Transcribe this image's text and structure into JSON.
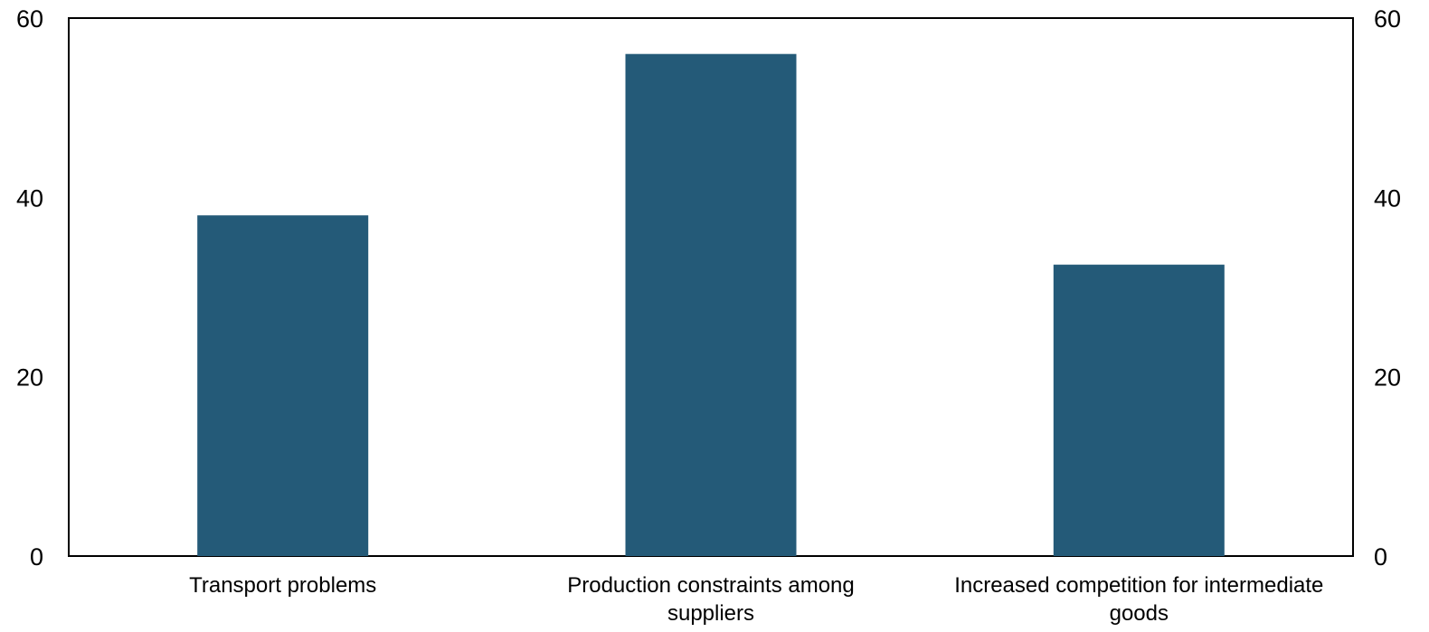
{
  "chart_data": {
    "type": "bar",
    "title": "",
    "xlabel": "",
    "ylabel": "",
    "categories": [
      [
        "Transport problems"
      ],
      [
        "Production constraints among",
        "suppliers"
      ],
      [
        "Increased competition for intermediate",
        "goods"
      ]
    ],
    "values": [
      38,
      56,
      32.5
    ],
    "ylim": [
      0,
      60
    ],
    "yticks": [
      0,
      20,
      40,
      60
    ],
    "secondary_y_axis": true,
    "grid": false,
    "legend": "none",
    "bar_color": "#245A78"
  }
}
